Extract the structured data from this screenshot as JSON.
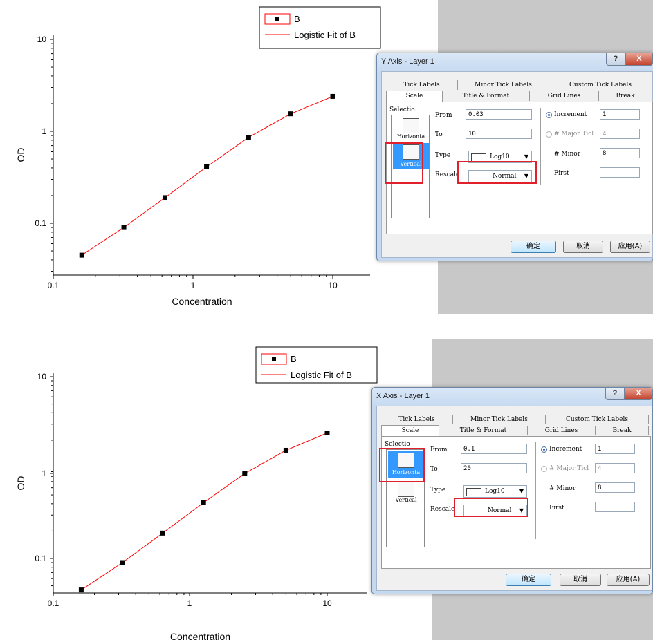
{
  "colors": {
    "fit_line": "#ff0000",
    "highlight": "#e0202a",
    "marker": "#000000",
    "gray_bg": "#c8c8c8"
  },
  "chart_data": [
    {
      "type": "scatter",
      "xlabel": "Concentration",
      "ylabel": "OD",
      "x_scale": "log10",
      "y_scale": "log10",
      "xlim": [
        0.1,
        20
      ],
      "ylim": [
        0.03,
        10
      ],
      "x_ticks": [
        "0.1",
        "1",
        "10"
      ],
      "y_ticks": [
        "0.1",
        "1",
        "10"
      ],
      "series": [
        {
          "name": "B",
          "x": [
            0.16,
            0.32,
            0.63,
            1.25,
            2.5,
            5,
            10
          ],
          "y": [
            0.045,
            0.09,
            0.19,
            0.41,
            0.86,
            1.55,
            2.4
          ]
        },
        {
          "name": "Logistic Fit of B",
          "x": [
            0.16,
            0.32,
            0.63,
            1.25,
            2.5,
            5,
            10
          ],
          "y": [
            0.045,
            0.09,
            0.19,
            0.41,
            0.86,
            1.55,
            2.4
          ]
        }
      ],
      "legend": {
        "placement": "top",
        "entries": [
          "B",
          "Logistic Fit of B"
        ]
      }
    },
    {
      "type": "scatter",
      "xlabel": "Concentration",
      "ylabel": "OD",
      "x_scale": "log10",
      "y_scale": "log10",
      "xlim": [
        0.1,
        20
      ],
      "ylim": [
        0.03,
        10
      ],
      "x_ticks": [
        "0.1",
        "1",
        "10"
      ],
      "y_ticks": [
        "0.1",
        "1",
        "10"
      ],
      "series": [
        {
          "name": "B",
          "x": [
            0.16,
            0.32,
            0.63,
            1.25,
            2.5,
            5,
            10
          ],
          "y": [
            0.045,
            0.09,
            0.19,
            0.41,
            0.86,
            1.55,
            2.4
          ]
        },
        {
          "name": "Logistic Fit of B",
          "x": [
            0.16,
            0.32,
            0.63,
            1.25,
            2.5,
            5,
            10
          ],
          "y": [
            0.045,
            0.09,
            0.19,
            0.41,
            0.86,
            1.55,
            2.4
          ]
        }
      ],
      "legend": {
        "placement": "top",
        "entries": [
          "B",
          "Logistic Fit of B"
        ]
      }
    }
  ],
  "dialogs": [
    {
      "title": "Y Axis - Layer 1",
      "help_label": "?",
      "close_label": "X",
      "tabs_row1": [
        "Tick Labels",
        "Minor Tick Labels",
        "Custom Tick Labels"
      ],
      "tabs_row2": [
        "Scale",
        "Title & Format",
        "Grid Lines",
        "Break"
      ],
      "selection_label": "Selectio",
      "list_items": [
        "Horizonta",
        "Vertical"
      ],
      "selected_item": "Vertical",
      "from_label": "From",
      "from_value": "0.03",
      "to_label": "To",
      "to_value": "10",
      "type_label": "Type",
      "type_value": "Log10",
      "rescale_label": "Rescale",
      "rescale_value": "Normal",
      "increment_label": "Increment",
      "increment_value": "1",
      "major_label": "# Major Ticl",
      "major_value": "4",
      "minor_label": "# Minor",
      "minor_value": "8",
      "first_label": "First",
      "first_value": "",
      "ok_label": "确定",
      "cancel_label": "取消",
      "apply_label": "应用(A)"
    },
    {
      "title": "X Axis - Layer 1",
      "help_label": "?",
      "close_label": "X",
      "tabs_row1": [
        "Tick Labels",
        "Minor Tick Labels",
        "Custom Tick Labels"
      ],
      "tabs_row2": [
        "Scale",
        "Title & Format",
        "Grid Lines",
        "Break"
      ],
      "selection_label": "Selectio",
      "list_items": [
        "Horizonta",
        "Vertical"
      ],
      "selected_item": "Horizonta",
      "from_label": "From",
      "from_value": "0.1",
      "to_label": "To",
      "to_value": "20",
      "type_label": "Type",
      "type_value": "Log10",
      "rescale_label": "Rescale",
      "rescale_value": "Normal",
      "increment_label": "Increment",
      "increment_value": "1",
      "major_label": "# Major Ticl",
      "major_value": "4",
      "minor_label": "# Minor",
      "minor_value": "8",
      "first_label": "First",
      "first_value": "",
      "ok_label": "确定",
      "cancel_label": "取消",
      "apply_label": "应用(A)"
    }
  ]
}
